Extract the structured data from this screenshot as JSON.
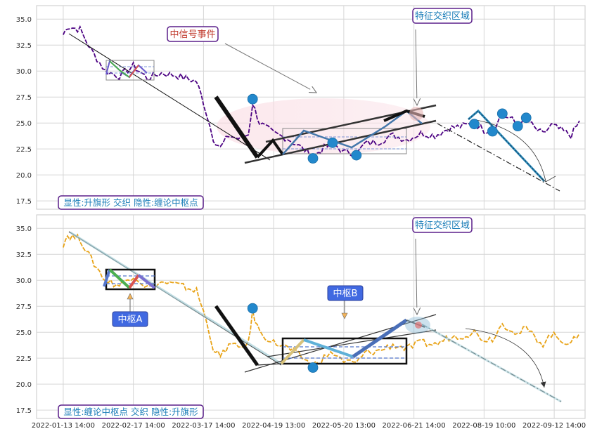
{
  "chart_data": [
    {
      "type": "line",
      "panel": "top",
      "price_color": "#4b0082",
      "ylim": [
        16.7,
        36.3
      ],
      "yticks": [
        "17.5",
        "20.0",
        "22.5",
        "25.0",
        "27.5",
        "30.0",
        "32.5",
        "35.0"
      ],
      "ytick_values": [
        17.5,
        20.0,
        22.5,
        25.0,
        27.5,
        30.0,
        32.5,
        35.0
      ],
      "grid": true,
      "annotations": {
        "event_label": "中信号事件",
        "feature_zone_label": "特征交织区域",
        "bottom_caption": "显性:升旗形 交织 隐性:缠论中枢点"
      },
      "key_points": [
        {
          "x": 13.5,
          "y": 27.3
        },
        {
          "x": 17.8,
          "y": 21.6
        },
        {
          "x": 19.2,
          "y": 23.1
        },
        {
          "x": 20.9,
          "y": 21.9
        },
        {
          "x": 29.3,
          "y": 24.9
        },
        {
          "x": 30.6,
          "y": 24.2
        },
        {
          "x": 31.3,
          "y": 25.9
        },
        {
          "x": 32.4,
          "y": 24.7
        },
        {
          "x": 33.0,
          "y": 25.5
        }
      ]
    },
    {
      "type": "line",
      "panel": "bottom",
      "price_color": "#e8a317",
      "ylim": [
        16.7,
        36.3
      ],
      "yticks": [
        "17.5",
        "20.0",
        "22.5",
        "25.0",
        "27.5",
        "30.0",
        "32.5",
        "35.0"
      ],
      "ytick_values": [
        17.5,
        20.0,
        22.5,
        25.0,
        27.5,
        30.0,
        32.5,
        35.0
      ],
      "grid": true,
      "annotations": {
        "pivot_a_label": "中枢A",
        "pivot_b_label": "中枢B",
        "feature_zone_label": "特征交织区域",
        "bottom_caption": "显性:缠论中枢点 交织 隐性:升旗形"
      },
      "key_points": [
        {
          "x": 13.5,
          "y": 27.3
        },
        {
          "x": 17.8,
          "y": 21.6
        }
      ]
    }
  ],
  "x_axis": {
    "ticks": [
      "2022-01-13 14:00",
      "2022-02-17 14:00",
      "2022-03-17 14:00",
      "2022-04-19 13:00",
      "2022-05-20 13:00",
      "2022-06-21 14:00",
      "2022-08-19 10:00",
      "2022-09-12 14:00"
    ],
    "tick_positions": [
      0,
      5,
      10,
      15,
      20,
      25,
      30,
      35
    ],
    "xlim": [
      -1.9,
      37.2
    ]
  }
}
